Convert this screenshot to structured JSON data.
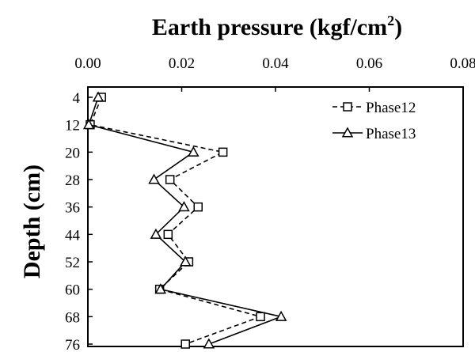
{
  "chart_data": {
    "type": "line",
    "title": "Earth pressure (kgf/cm²)",
    "title_main": "Earth pressure (kgf/cm",
    "title_sup": "2",
    "title_close": ")",
    "ylabel": "Depth (cm)",
    "xlabel": "",
    "x_axis_position": "top",
    "y_axis_inverted": true,
    "xlim": [
      0,
      0.08
    ],
    "ylim": [
      4,
      76
    ],
    "x_ticks": [
      "0.00",
      "0.02",
      "0.04",
      "0.06",
      "0.08"
    ],
    "x_tick_values": [
      0,
      0.02,
      0.04,
      0.06,
      0.08
    ],
    "y_ticks": [
      "4",
      "12",
      "20",
      "28",
      "36",
      "44",
      "52",
      "60",
      "68",
      "76"
    ],
    "y_tick_values": [
      4,
      12,
      20,
      28,
      36,
      44,
      52,
      60,
      68,
      76
    ],
    "grid": false,
    "legend_position": "top-right",
    "series": [
      {
        "name": "Phase12",
        "marker": "square",
        "line_style": "dashed",
        "color": "#000000",
        "points": [
          {
            "x": 0.0029,
            "y": 4
          },
          {
            "x": 0.0005,
            "y": 12
          },
          {
            "x": 0.0288,
            "y": 20
          },
          {
            "x": 0.0175,
            "y": 28
          },
          {
            "x": 0.0235,
            "y": 36
          },
          {
            "x": 0.0171,
            "y": 44
          },
          {
            "x": 0.0215,
            "y": 52
          },
          {
            "x": 0.0153,
            "y": 60
          },
          {
            "x": 0.0368,
            "y": 68
          },
          {
            "x": 0.0208,
            "y": 76
          }
        ]
      },
      {
        "name": "Phase13",
        "marker": "triangle",
        "line_style": "solid",
        "color": "#000000",
        "points": [
          {
            "x": 0.0022,
            "y": 4
          },
          {
            "x": 0.0002,
            "y": 12
          },
          {
            "x": 0.0225,
            "y": 20
          },
          {
            "x": 0.0141,
            "y": 28
          },
          {
            "x": 0.0205,
            "y": 36
          },
          {
            "x": 0.0145,
            "y": 44
          },
          {
            "x": 0.0208,
            "y": 52
          },
          {
            "x": 0.0155,
            "y": 60
          },
          {
            "x": 0.0412,
            "y": 68
          },
          {
            "x": 0.0258,
            "y": 76
          }
        ]
      }
    ]
  }
}
